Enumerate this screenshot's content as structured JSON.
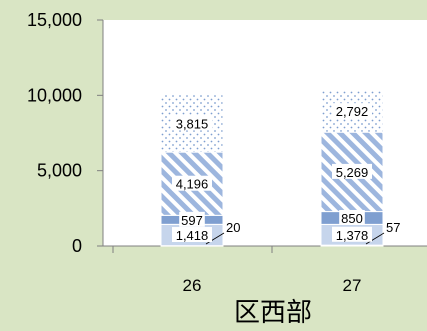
{
  "chart_data": {
    "type": "bar",
    "stacked": true,
    "title": "区西部",
    "categories": [
      "26",
      "27"
    ],
    "y_ticks": [
      "0",
      "5,000",
      "10,000",
      "15,000"
    ],
    "ylim": [
      0,
      15000
    ],
    "grid": false,
    "legend": "none",
    "series": [
      {
        "values": [
          20,
          57
        ],
        "labels": [
          "20",
          "57"
        ],
        "color": "#e8edf7",
        "pattern": "none"
      },
      {
        "values": [
          1418,
          1378
        ],
        "labels": [
          "1,418",
          "1,378"
        ],
        "color": "#c6d5ec",
        "pattern": "none"
      },
      {
        "values": [
          597,
          850
        ],
        "labels": [
          "597",
          "850"
        ],
        "color": "#7f9fd0",
        "pattern": "none"
      },
      {
        "values": [
          4196,
          5269
        ],
        "labels": [
          "4,196",
          "5,269"
        ],
        "color": "#9db6de",
        "pattern": "diagonal"
      },
      {
        "values": [
          3815,
          2792
        ],
        "labels": [
          "3,815",
          "2,792"
        ],
        "color": "#8da9d6",
        "pattern": "dots"
      }
    ]
  }
}
